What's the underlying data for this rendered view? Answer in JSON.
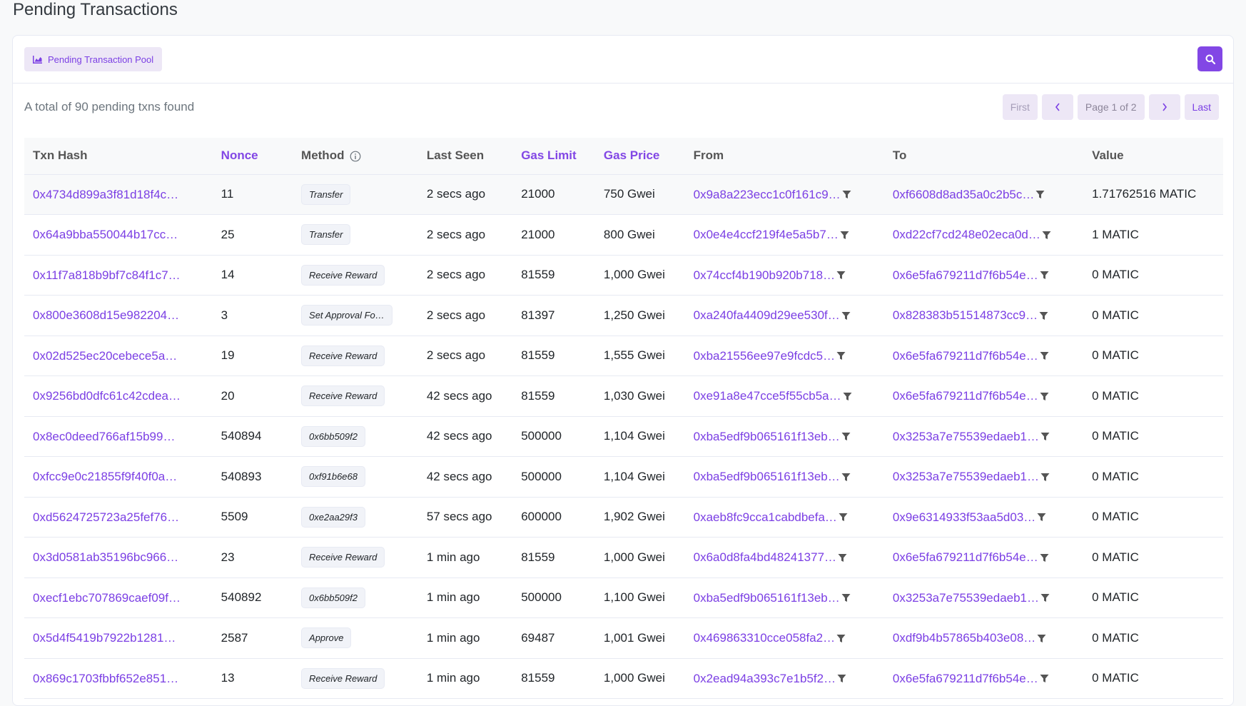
{
  "page": {
    "title": "Pending Transactions"
  },
  "toolbar": {
    "pool_label": "Pending Transaction Pool"
  },
  "summary": "A total of 90 pending txns found",
  "pager": {
    "first": "First",
    "info": "Page 1 of 2",
    "last": "Last"
  },
  "columns": {
    "hash": "Txn Hash",
    "nonce": "Nonce",
    "method": "Method",
    "last_seen": "Last Seen",
    "gas_limit": "Gas Limit",
    "gas_price": "Gas Price",
    "from": "From",
    "to": "To",
    "value": "Value"
  },
  "rows": [
    {
      "hash": "0x4734d899a3f81d18f4c…",
      "nonce": "11",
      "method": "Transfer",
      "last_seen": "2 secs ago",
      "gas_limit": "21000",
      "gas_price": "750 Gwei",
      "from": "0x9a8a223ecc1c0f161c9…",
      "to": "0xf6608d8ad35a0c2b5c…",
      "value": "1.71762516 MATIC"
    },
    {
      "hash": "0x64a9bba550044b17cc…",
      "nonce": "25",
      "method": "Transfer",
      "last_seen": "2 secs ago",
      "gas_limit": "21000",
      "gas_price": "800 Gwei",
      "from": "0x0e4e4ccf219f4e5a5b7…",
      "to": "0xd22cf7cd248e02eca0d…",
      "value": "1 MATIC"
    },
    {
      "hash": "0x11f7a818b9bf7c84f1c7…",
      "nonce": "14",
      "method": "Receive Reward",
      "last_seen": "2 secs ago",
      "gas_limit": "81559",
      "gas_price": "1,000 Gwei",
      "from": "0x74ccf4b190b920b718…",
      "to": "0x6e5fa679211d7f6b54e…",
      "value": "0 MATIC"
    },
    {
      "hash": "0x800e3608d15e982204…",
      "nonce": "3",
      "method": "Set Approval For...",
      "last_seen": "2 secs ago",
      "gas_limit": "81397",
      "gas_price": "1,250 Gwei",
      "from": "0xa240fa4409d29ee530f…",
      "to": "0x828383b51514873cc9…",
      "value": "0 MATIC"
    },
    {
      "hash": "0x02d525ec20cebece5a…",
      "nonce": "19",
      "method": "Receive Reward",
      "last_seen": "2 secs ago",
      "gas_limit": "81559",
      "gas_price": "1,555 Gwei",
      "from": "0xba21556ee97e9fcdc5…",
      "to": "0x6e5fa679211d7f6b54e…",
      "value": "0 MATIC"
    },
    {
      "hash": "0x9256bd0dfc61c42cdea…",
      "nonce": "20",
      "method": "Receive Reward",
      "last_seen": "42 secs ago",
      "gas_limit": "81559",
      "gas_price": "1,030 Gwei",
      "from": "0xe91a8e47cce5f55cb5a…",
      "to": "0x6e5fa679211d7f6b54e…",
      "value": "0 MATIC"
    },
    {
      "hash": "0x8ec0deed766af15b99…",
      "nonce": "540894",
      "method": "0x6bb509f2",
      "last_seen": "42 secs ago",
      "gas_limit": "500000",
      "gas_price": "1,104 Gwei",
      "from": "0xba5edf9b065161f13eb…",
      "to": "0x3253a7e75539edaeb1…",
      "value": "0 MATIC"
    },
    {
      "hash": "0xfcc9e0c21855f9f40f0a…",
      "nonce": "540893",
      "method": "0xf91b6e68",
      "last_seen": "42 secs ago",
      "gas_limit": "500000",
      "gas_price": "1,104 Gwei",
      "from": "0xba5edf9b065161f13eb…",
      "to": "0x3253a7e75539edaeb1…",
      "value": "0 MATIC"
    },
    {
      "hash": "0xd5624725723a25fef76…",
      "nonce": "5509",
      "method": "0xe2aa29f3",
      "last_seen": "57 secs ago",
      "gas_limit": "600000",
      "gas_price": "1,902 Gwei",
      "from": "0xaeb8fc9cca1cabdbefa…",
      "to": "0x9e6314933f53aa5d03…",
      "value": "0 MATIC"
    },
    {
      "hash": "0x3d0581ab35196bc966…",
      "nonce": "23",
      "method": "Receive Reward",
      "last_seen": "1 min ago",
      "gas_limit": "81559",
      "gas_price": "1,000 Gwei",
      "from": "0x6a0d8fa4bd48241377…",
      "to": "0x6e5fa679211d7f6b54e…",
      "value": "0 MATIC"
    },
    {
      "hash": "0xecf1ebc707869caef09f…",
      "nonce": "540892",
      "method": "0x6bb509f2",
      "last_seen": "1 min ago",
      "gas_limit": "500000",
      "gas_price": "1,100 Gwei",
      "from": "0xba5edf9b065161f13eb…",
      "to": "0x3253a7e75539edaeb1…",
      "value": "0 MATIC"
    },
    {
      "hash": "0x5d4f5419b7922b1281…",
      "nonce": "2587",
      "method": "Approve",
      "last_seen": "1 min ago",
      "gas_limit": "69487",
      "gas_price": "1,001 Gwei",
      "from": "0x469863310cce058fa2…",
      "to": "0xdf9b4b57865b403e08…",
      "value": "0 MATIC"
    },
    {
      "hash": "0x869c1703fbbf652e851…",
      "nonce": "13",
      "method": "Receive Reward",
      "last_seen": "1 min ago",
      "gas_limit": "81559",
      "gas_price": "1,000 Gwei",
      "from": "0x2ead94a393c7e1b5f2…",
      "to": "0x6e5fa679211d7f6b54e…",
      "value": "0 MATIC"
    }
  ],
  "colors": {
    "accent": "#8247e5",
    "link": "#7b3fe4",
    "accent_light": "#ede7f6"
  }
}
